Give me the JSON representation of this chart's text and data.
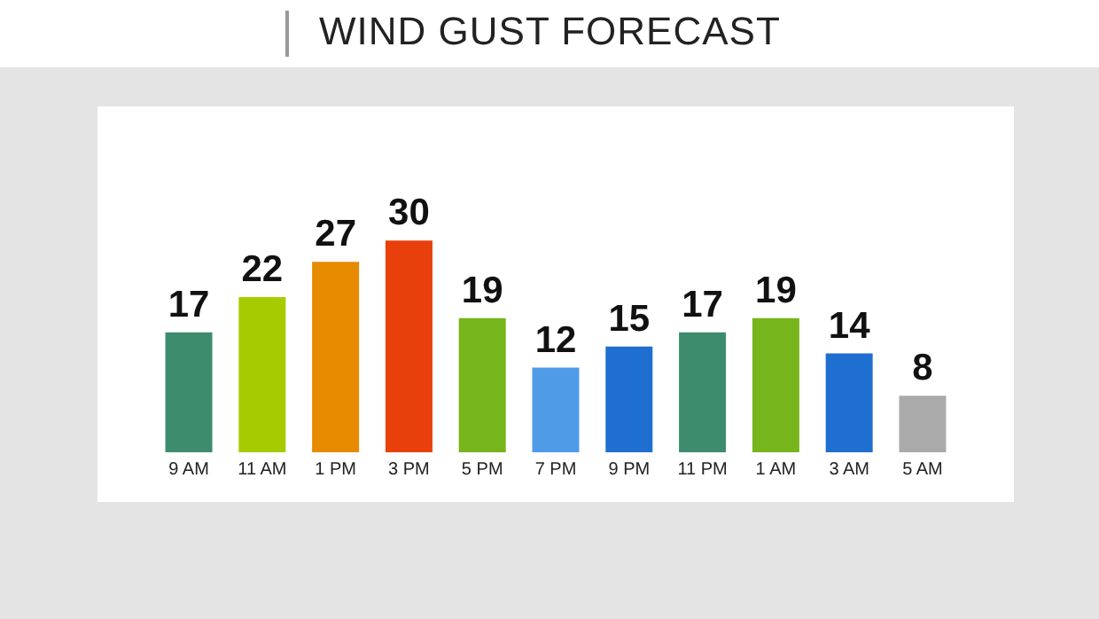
{
  "chart_data": {
    "type": "bar",
    "title": "WIND GUST FORECAST",
    "categories": [
      "9 AM",
      "11 AM",
      "1 PM",
      "3 PM",
      "5 PM",
      "7 PM",
      "9 PM",
      "11 PM",
      "1 AM",
      "3 AM",
      "5 AM"
    ],
    "values": [
      17,
      22,
      27,
      30,
      19,
      12,
      15,
      17,
      19,
      14,
      8
    ],
    "colors": [
      "#3e8c6e",
      "#a6cc00",
      "#e68a00",
      "#e8400c",
      "#76b51b",
      "#4f9be8",
      "#1f6fd1",
      "#3e8c6e",
      "#76b51b",
      "#1f6fd1",
      "#aaaaaa"
    ],
    "data_labels": true
  }
}
